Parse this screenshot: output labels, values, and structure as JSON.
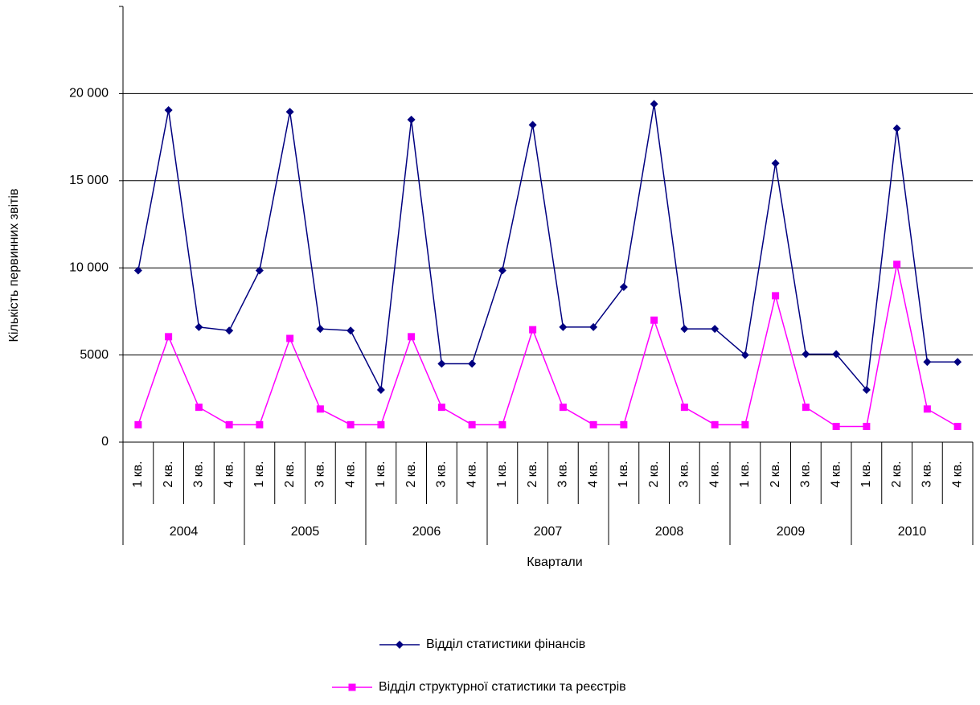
{
  "chart_data": {
    "type": "line",
    "y_label": "Кількість первинних звітів",
    "x_label": "Квартали",
    "categories": [
      "1 кв.",
      "2 кв.",
      "3 кв.",
      "4 кв.",
      "1 кв.",
      "2 кв.",
      "3 кв.",
      "4 кв.",
      "1 кв.",
      "2 кв.",
      "3 кв.",
      "4 кв.",
      "1 кв.",
      "2 кв.",
      "3 кв.",
      "4 кв.",
      "1 кв.",
      "2 кв.",
      "3 кв.",
      "4 кв.",
      "1 кв.",
      "2 кв.",
      "3 кв.",
      "4 кв.",
      "1 кв.",
      "2 кв.",
      "3 кв.",
      "4 кв."
    ],
    "category_groups": [
      "2004",
      "2005",
      "2006",
      "2007",
      "2008",
      "2009",
      "2010"
    ],
    "series": [
      {
        "name": "Відділ статистики фінансів",
        "color": "#000080",
        "marker": "diamond",
        "values": [
          9850,
          19050,
          6600,
          6400,
          9850,
          18950,
          6500,
          6400,
          3000,
          18500,
          4500,
          4500,
          9850,
          18200,
          6600,
          6600,
          8900,
          19400,
          6500,
          6500,
          5000,
          16000,
          5050,
          5050,
          3000,
          18000,
          4600,
          4600
        ]
      },
      {
        "name": "Відділ структурної статистики та реєстрів",
        "color": "#ff00ff",
        "marker": "square",
        "values": [
          1000,
          6050,
          2000,
          1000,
          1000,
          5950,
          1900,
          1000,
          1000,
          6050,
          2000,
          1000,
          1000,
          6450,
          2000,
          1000,
          1000,
          7000,
          2000,
          1000,
          1000,
          8400,
          2000,
          900,
          900,
          10200,
          1900,
          900
        ]
      }
    ],
    "ylim": [
      0,
      25000
    ],
    "yticks": [
      0,
      5000,
      {
        "value": 10000,
        "label": "10 000"
      },
      {
        "value": 15000,
        "label": "15 000"
      },
      {
        "value": 20000,
        "label": "20 000"
      }
    ],
    "grid": true,
    "legend": "bottom"
  }
}
